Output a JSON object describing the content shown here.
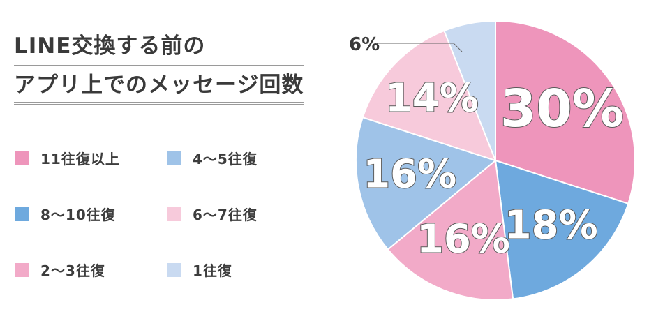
{
  "chart_data": {
    "type": "pie",
    "title_lines": [
      "LINE交換する前の",
      "アプリ上でのメッセージ回数"
    ],
    "slices": [
      {
        "label": "11往復以上",
        "value": 30,
        "display": "30%",
        "color": "#ee95bb"
      },
      {
        "label": "8～10往復",
        "value": 18,
        "display": "18%",
        "color": "#6ea9de"
      },
      {
        "label": "2～3往復",
        "value": 16,
        "display": "16%",
        "color": "#f2aac8"
      },
      {
        "label": "4～5往復",
        "value": 16,
        "display": "16%",
        "color": "#9fc3e8"
      },
      {
        "label": "6～7往復",
        "value": 14,
        "display": "14%",
        "color": "#f7cadb"
      },
      {
        "label": "1往復",
        "value": 6,
        "display": "6%",
        "color": "#c9daf1"
      }
    ],
    "legend_order": [
      "11往復以上",
      "4～5往復",
      "8～10往復",
      "6～7往復",
      "2～3往復",
      "1往復"
    ]
  }
}
